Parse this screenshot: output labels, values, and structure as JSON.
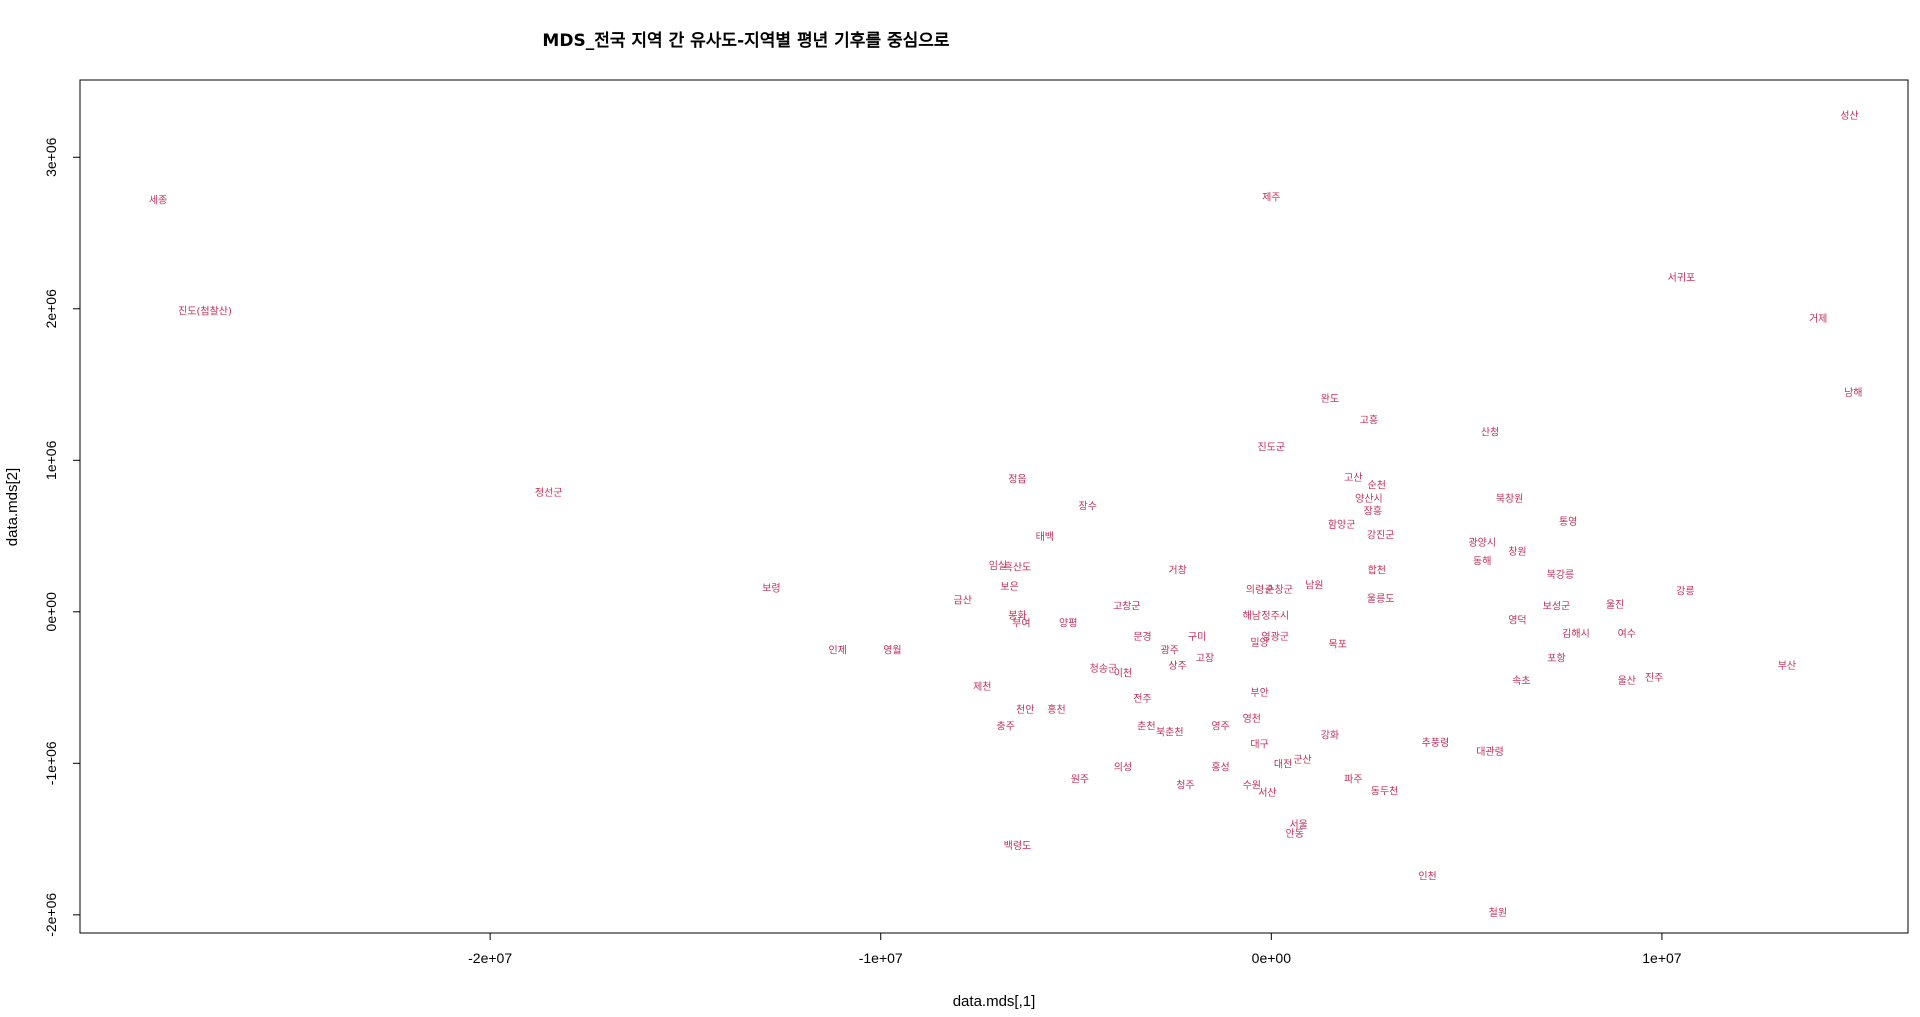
{
  "chart_data": {
    "type": "scatter",
    "title": "MDS_전국 지역 간 유사도-지역별 평년 기후를 중심으로",
    "xlabel": "data.mds[,1]",
    "ylabel": "data.mds[2]",
    "xlim": [
      -30500000,
      16300000
    ],
    "ylim": [
      -2120000,
      3510000
    ],
    "xticks": [
      -20000000,
      -10000000,
      0,
      10000000
    ],
    "xtick_labels": [
      "-2e+07",
      "-1e+07",
      "0e+00",
      "1e+07"
    ],
    "yticks": [
      -2000000,
      -1000000,
      0,
      1000000,
      2000000,
      3000000
    ],
    "ytick_labels": [
      "-2e+06",
      "-1e+06",
      "0e+00",
      "1e+06",
      "2e+06",
      "3e+06"
    ],
    "label_color": "#c0305a",
    "points": [
      {
        "label": "성산",
        "x": 14800000,
        "y": 3280000
      },
      {
        "label": "세종",
        "x": -28500000,
        "y": 2720000
      },
      {
        "label": "제주",
        "x": 0,
        "y": 2740000
      },
      {
        "label": "서귀포",
        "x": 10500000,
        "y": 2210000
      },
      {
        "label": "진도(첨찰산)",
        "x": -27300000,
        "y": 1990000
      },
      {
        "label": "거제",
        "x": 14000000,
        "y": 1940000
      },
      {
        "label": "완도",
        "x": 1500000,
        "y": 1410000
      },
      {
        "label": "남해",
        "x": 14900000,
        "y": 1450000
      },
      {
        "label": "고흥",
        "x": 2500000,
        "y": 1270000
      },
      {
        "label": "산청",
        "x": 5600000,
        "y": 1190000
      },
      {
        "label": "진도군",
        "x": 0,
        "y": 1090000
      },
      {
        "label": "고산",
        "x": 2100000,
        "y": 890000
      },
      {
        "label": "순천",
        "x": 2700000,
        "y": 840000
      },
      {
        "label": "정읍",
        "x": -6500000,
        "y": 880000
      },
      {
        "label": "정선군",
        "x": -18500000,
        "y": 790000
      },
      {
        "label": "양산시",
        "x": 2500000,
        "y": 750000
      },
      {
        "label": "북창원",
        "x": 6100000,
        "y": 750000
      },
      {
        "label": "장수",
        "x": -4700000,
        "y": 700000
      },
      {
        "label": "장흥",
        "x": 2600000,
        "y": 670000
      },
      {
        "label": "통영",
        "x": 7600000,
        "y": 600000
      },
      {
        "label": "함양군",
        "x": 1800000,
        "y": 580000
      },
      {
        "label": "강진군",
        "x": 2800000,
        "y": 510000
      },
      {
        "label": "태백",
        "x": -5800000,
        "y": 500000
      },
      {
        "label": "광양시",
        "x": 5400000,
        "y": 460000
      },
      {
        "label": "창원",
        "x": 6300000,
        "y": 400000
      },
      {
        "label": "동해",
        "x": 5400000,
        "y": 340000
      },
      {
        "label": "임실",
        "x": -7000000,
        "y": 310000
      },
      {
        "label": "흑산도",
        "x": -6500000,
        "y": 300000
      },
      {
        "label": "거창",
        "x": -2400000,
        "y": 280000
      },
      {
        "label": "합천",
        "x": 2700000,
        "y": 280000
      },
      {
        "label": "북강릉",
        "x": 7400000,
        "y": 250000
      },
      {
        "label": "남원",
        "x": 1100000,
        "y": 180000
      },
      {
        "label": "보은",
        "x": -6700000,
        "y": 170000
      },
      {
        "label": "보령",
        "x": -12800000,
        "y": 160000
      },
      {
        "label": "의령군",
        "x": -300000,
        "y": 150000
      },
      {
        "label": "순창군",
        "x": 200000,
        "y": 150000
      },
      {
        "label": "강릉",
        "x": 10600000,
        "y": 140000
      },
      {
        "label": "울릉도",
        "x": 2800000,
        "y": 90000
      },
      {
        "label": "금산",
        "x": -7900000,
        "y": 80000
      },
      {
        "label": "고창군",
        "x": -3700000,
        "y": 40000
      },
      {
        "label": "울진",
        "x": 8800000,
        "y": 50000
      },
      {
        "label": "보성군",
        "x": 7300000,
        "y": 40000
      },
      {
        "label": "해남",
        "x": -500000,
        "y": -20000
      },
      {
        "label": "정주시",
        "x": 100000,
        "y": -20000
      },
      {
        "label": "봉화",
        "x": -6500000,
        "y": -20000
      },
      {
        "label": "부여",
        "x": -6400000,
        "y": -70000
      },
      {
        "label": "양평",
        "x": -5200000,
        "y": -70000
      },
      {
        "label": "영덕",
        "x": 6300000,
        "y": -50000
      },
      {
        "label": "김해시",
        "x": 7800000,
        "y": -140000
      },
      {
        "label": "여수",
        "x": 9100000,
        "y": -140000
      },
      {
        "label": "문경",
        "x": -3300000,
        "y": -160000
      },
      {
        "label": "구미",
        "x": -1900000,
        "y": -160000
      },
      {
        "label": "영광군",
        "x": 100000,
        "y": -160000
      },
      {
        "label": "밀양",
        "x": -300000,
        "y": -200000
      },
      {
        "label": "목포",
        "x": 1700000,
        "y": -210000
      },
      {
        "label": "광주",
        "x": -2600000,
        "y": -250000
      },
      {
        "label": "인제",
        "x": -11100000,
        "y": -250000
      },
      {
        "label": "영월",
        "x": -9700000,
        "y": -250000
      },
      {
        "label": "포항",
        "x": 7300000,
        "y": -300000
      },
      {
        "label": "고장",
        "x": -1700000,
        "y": -300000
      },
      {
        "label": "상주",
        "x": -2400000,
        "y": -350000
      },
      {
        "label": "부산",
        "x": 13200000,
        "y": -350000
      },
      {
        "label": "청송군",
        "x": -4300000,
        "y": -370000
      },
      {
        "label": "이천",
        "x": -3800000,
        "y": -400000
      },
      {
        "label": "속초",
        "x": 6400000,
        "y": -450000
      },
      {
        "label": "울산",
        "x": 9100000,
        "y": -450000
      },
      {
        "label": "진주",
        "x": 9800000,
        "y": -430000
      },
      {
        "label": "제천",
        "x": -7400000,
        "y": -490000
      },
      {
        "label": "부안",
        "x": -300000,
        "y": -530000
      },
      {
        "label": "전주",
        "x": -3300000,
        "y": -570000
      },
      {
        "label": "천안",
        "x": -6300000,
        "y": -640000
      },
      {
        "label": "홍천",
        "x": -5500000,
        "y": -640000
      },
      {
        "label": "영천",
        "x": -500000,
        "y": -700000
      },
      {
        "label": "충주",
        "x": -6800000,
        "y": -750000
      },
      {
        "label": "춘천",
        "x": -3200000,
        "y": -750000
      },
      {
        "label": "북춘천",
        "x": -2600000,
        "y": -790000
      },
      {
        "label": "영주",
        "x": -1300000,
        "y": -750000
      },
      {
        "label": "강화",
        "x": 1500000,
        "y": -810000
      },
      {
        "label": "추풍령",
        "x": 4200000,
        "y": -860000
      },
      {
        "label": "대구",
        "x": -300000,
        "y": -870000
      },
      {
        "label": "대관령",
        "x": 5600000,
        "y": -920000
      },
      {
        "label": "군산",
        "x": 800000,
        "y": -970000
      },
      {
        "label": "대전",
        "x": 300000,
        "y": -1000000
      },
      {
        "label": "의성",
        "x": -3800000,
        "y": -1020000
      },
      {
        "label": "홍성",
        "x": -1300000,
        "y": -1020000
      },
      {
        "label": "원주",
        "x": -4900000,
        "y": -1100000
      },
      {
        "label": "파주",
        "x": 2100000,
        "y": -1100000
      },
      {
        "label": "청주",
        "x": -2200000,
        "y": -1140000
      },
      {
        "label": "수원",
        "x": -500000,
        "y": -1140000
      },
      {
        "label": "서산",
        "x": -100000,
        "y": -1190000
      },
      {
        "label": "동두천",
        "x": 2900000,
        "y": -1180000
      },
      {
        "label": "서울",
        "x": 700000,
        "y": -1400000
      },
      {
        "label": "안동",
        "x": 600000,
        "y": -1460000
      },
      {
        "label": "백령도",
        "x": -6500000,
        "y": -1540000
      },
      {
        "label": "인천",
        "x": 4000000,
        "y": -1740000
      },
      {
        "label": "철원",
        "x": 5800000,
        "y": -1980000
      }
    ]
  }
}
